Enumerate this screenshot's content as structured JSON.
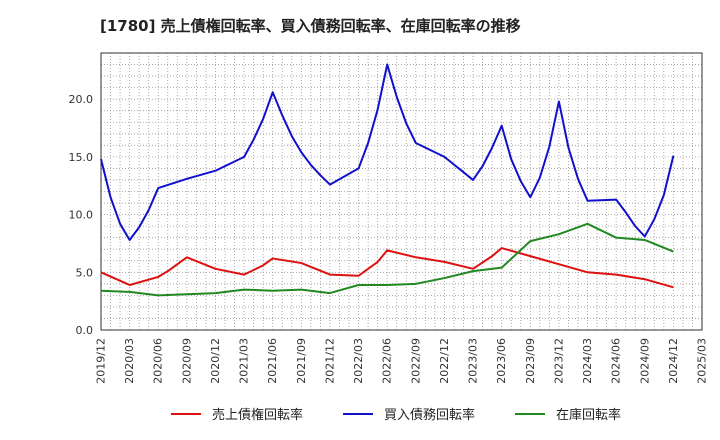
{
  "chart_data": {
    "type": "line",
    "title": "[1780]  売上債権回転率、買入債務回転率、在庫回転率の推移",
    "xlabel": "",
    "ylabel": "",
    "ylim": [
      0,
      24
    ],
    "yticks": [
      0,
      5,
      10,
      15,
      20
    ],
    "ytick_labels": [
      "0.0",
      "5.0",
      "10.0",
      "15.0",
      "20.0"
    ],
    "x_start": "2019-12",
    "x_end": "2025-03",
    "xtick_labels": [
      "2019/12",
      "2020/03",
      "2020/06",
      "2020/09",
      "2020/12",
      "2021/03",
      "2021/06",
      "2021/09",
      "2021/12",
      "2022/03",
      "2022/06",
      "2022/09",
      "2022/12",
      "2023/03",
      "2023/06",
      "2023/09",
      "2023/12",
      "2024/03",
      "2024/06",
      "2024/09",
      "2024/12",
      "2025/03"
    ],
    "grid": true,
    "legend_position": "bottom",
    "series": [
      {
        "name": "売上債権回転率",
        "color": "#dd1111",
        "values": [
          [
            "2019/12",
            5.0
          ],
          [
            "2020/03",
            3.9
          ],
          [
            "2020/06",
            4.6
          ],
          [
            "2020/07",
            5.1
          ],
          [
            "2020/09",
            6.3
          ],
          [
            "2020/12",
            5.3
          ],
          [
            "2021/03",
            4.8
          ],
          [
            "2021/05",
            5.6
          ],
          [
            "2021/06",
            6.2
          ],
          [
            "2021/09",
            5.8
          ],
          [
            "2021/12",
            4.8
          ],
          [
            "2022/03",
            4.7
          ],
          [
            "2022/05",
            5.9
          ],
          [
            "2022/06",
            6.9
          ],
          [
            "2022/09",
            6.3
          ],
          [
            "2022/12",
            5.9
          ],
          [
            "2023/03",
            5.3
          ],
          [
            "2023/05",
            6.4
          ],
          [
            "2023/06",
            7.1
          ],
          [
            "2023/09",
            6.4
          ],
          [
            "2023/12",
            5.7
          ],
          [
            "2024/03",
            5.0
          ],
          [
            "2024/06",
            4.8
          ],
          [
            "2024/09",
            4.4
          ],
          [
            "2024/12",
            3.7
          ]
        ]
      },
      {
        "name": "買入債務回転率",
        "color": "#1111cc",
        "values": [
          [
            "2019/12",
            14.8
          ],
          [
            "2020/01",
            11.5
          ],
          [
            "2020/02",
            9.2
          ],
          [
            "2020/03",
            7.8
          ],
          [
            "2020/04",
            8.9
          ],
          [
            "2020/05",
            10.4
          ],
          [
            "2020/06",
            12.3
          ],
          [
            "2020/09",
            13.1
          ],
          [
            "2020/12",
            13.8
          ],
          [
            "2021/03",
            15.0
          ],
          [
            "2021/04",
            16.5
          ],
          [
            "2021/05",
            18.3
          ],
          [
            "2021/06",
            20.6
          ],
          [
            "2021/07",
            18.6
          ],
          [
            "2021/08",
            16.8
          ],
          [
            "2021/09",
            15.4
          ],
          [
            "2021/10",
            14.3
          ],
          [
            "2021/11",
            13.4
          ],
          [
            "2021/12",
            12.6
          ],
          [
            "2022/03",
            14.0
          ],
          [
            "2022/04",
            16.2
          ],
          [
            "2022/05",
            19.1
          ],
          [
            "2022/06",
            23.0
          ],
          [
            "2022/07",
            20.2
          ],
          [
            "2022/08",
            17.9
          ],
          [
            "2022/09",
            16.2
          ],
          [
            "2022/12",
            15.0
          ],
          [
            "2023/03",
            13.0
          ],
          [
            "2023/04",
            14.2
          ],
          [
            "2023/05",
            15.8
          ],
          [
            "2023/06",
            17.7
          ],
          [
            "2023/07",
            14.8
          ],
          [
            "2023/08",
            12.9
          ],
          [
            "2023/09",
            11.5
          ],
          [
            "2023/10",
            13.2
          ],
          [
            "2023/11",
            15.9
          ],
          [
            "2023/12",
            19.8
          ],
          [
            "2024/01",
            15.8
          ],
          [
            "2024/02",
            13.1
          ],
          [
            "2024/03",
            11.2
          ],
          [
            "2024/06",
            11.3
          ],
          [
            "2024/07",
            10.2
          ],
          [
            "2024/08",
            9.0
          ],
          [
            "2024/09",
            8.1
          ],
          [
            "2024/10",
            9.6
          ],
          [
            "2024/11",
            11.7
          ],
          [
            "2024/12",
            15.1
          ]
        ]
      },
      {
        "name": "在庫回転率",
        "color": "#228822",
        "values": [
          [
            "2019/12",
            3.4
          ],
          [
            "2020/03",
            3.3
          ],
          [
            "2020/06",
            3.0
          ],
          [
            "2020/09",
            3.1
          ],
          [
            "2020/12",
            3.2
          ],
          [
            "2021/03",
            3.5
          ],
          [
            "2021/06",
            3.4
          ],
          [
            "2021/09",
            3.5
          ],
          [
            "2021/12",
            3.2
          ],
          [
            "2022/03",
            3.9
          ],
          [
            "2022/06",
            3.9
          ],
          [
            "2022/09",
            4.0
          ],
          [
            "2022/12",
            4.5
          ],
          [
            "2023/03",
            5.1
          ],
          [
            "2023/06",
            5.4
          ],
          [
            "2023/09",
            7.7
          ],
          [
            "2023/12",
            8.3
          ],
          [
            "2024/03",
            9.2
          ],
          [
            "2024/06",
            8.0
          ],
          [
            "2024/09",
            7.8
          ],
          [
            "2024/12",
            6.8
          ]
        ]
      }
    ]
  }
}
